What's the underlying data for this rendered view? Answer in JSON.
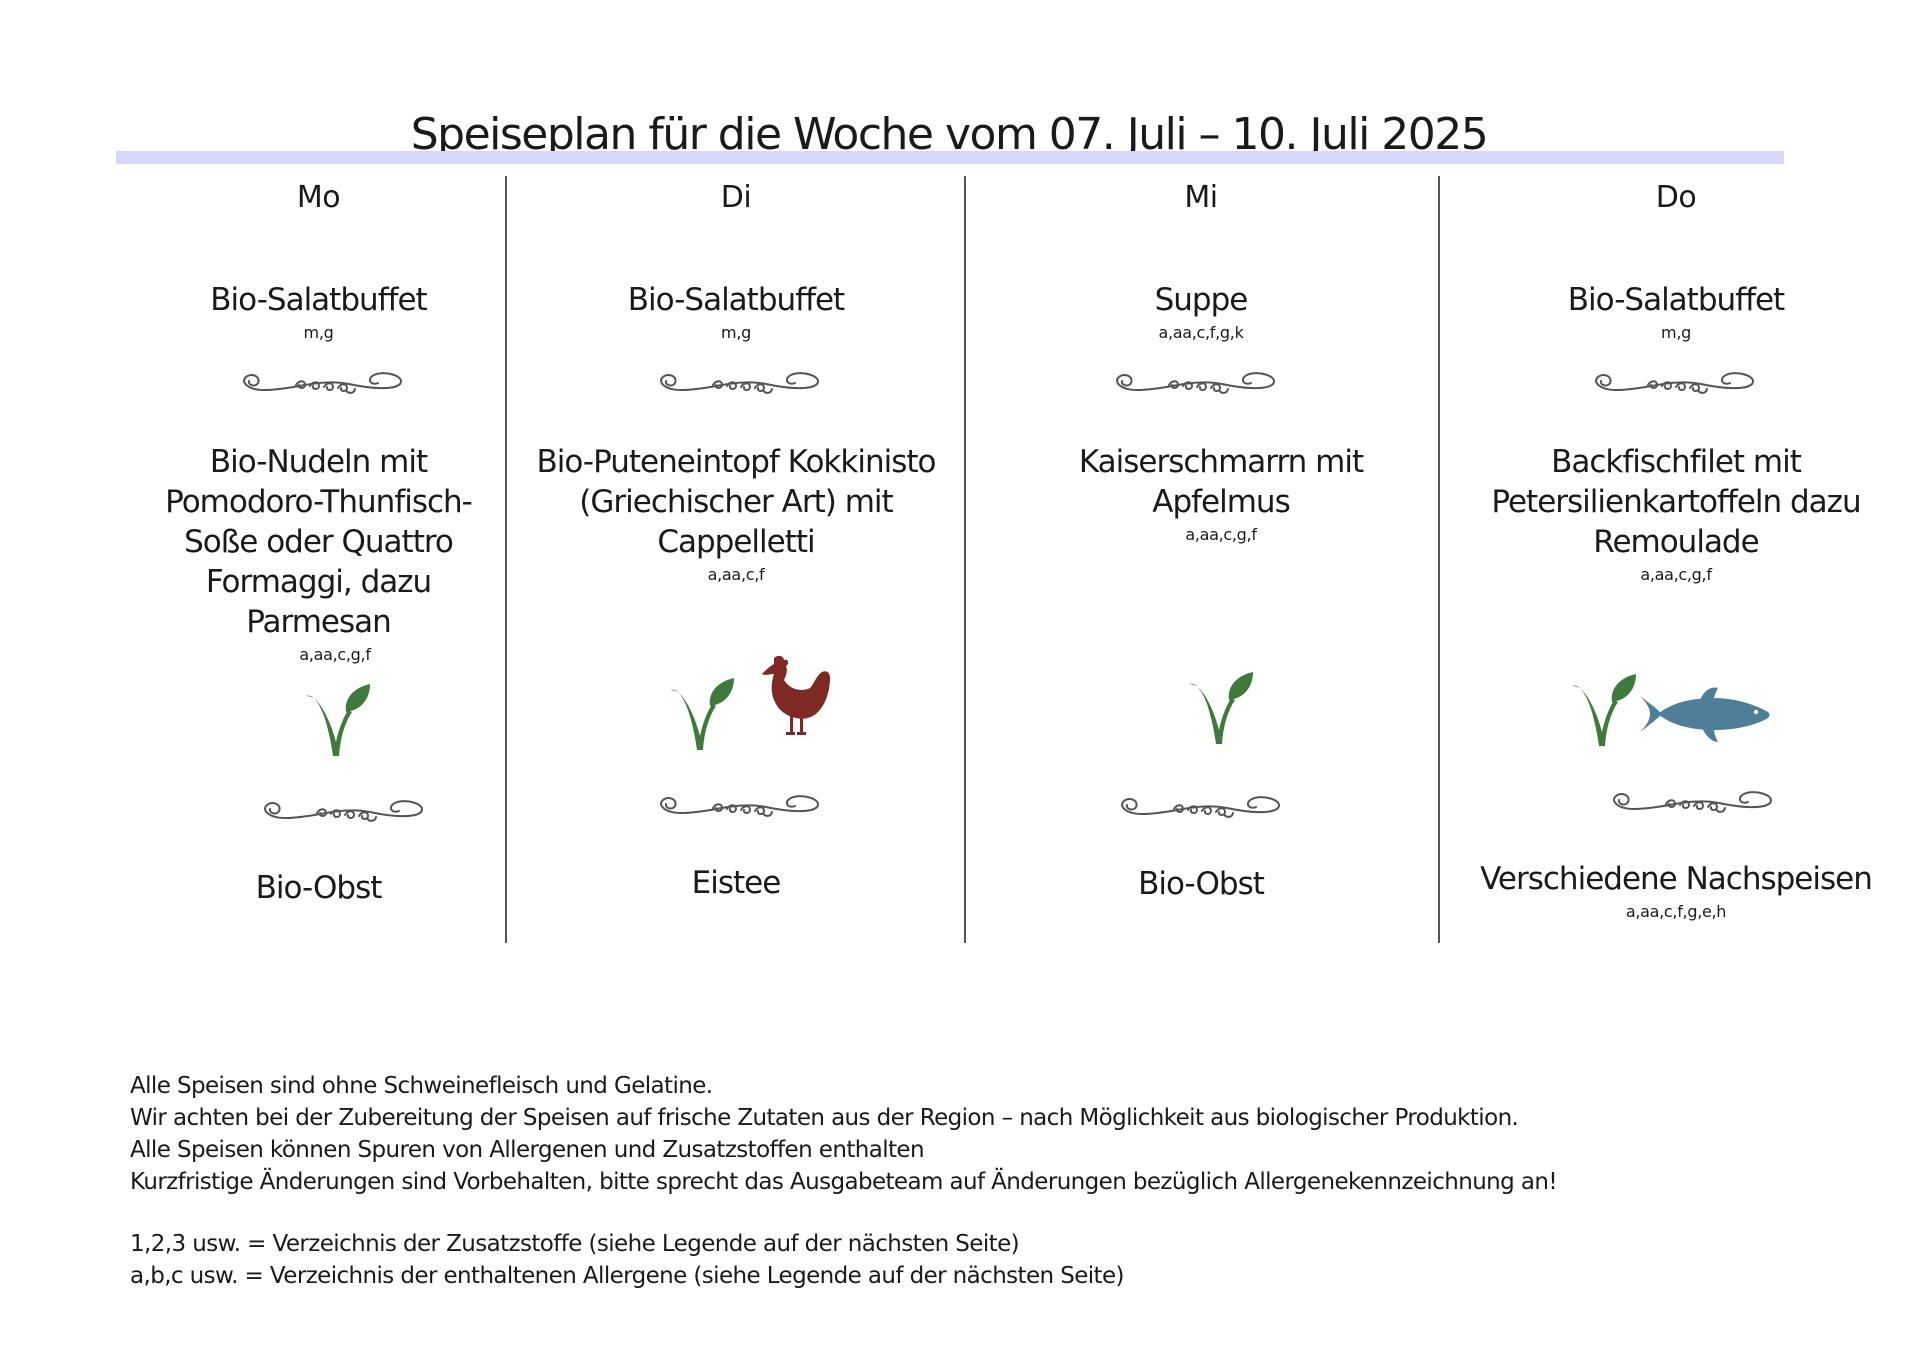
{
  "title": "Speiseplan für die Woche vom 07. Juli – 10. Juli 2025",
  "days": [
    {
      "day": "Mo",
      "starter": {
        "name": "Bio-Salatbuffet",
        "allergens": "m,g"
      },
      "main": {
        "name": "Bio-Nudeln mit Pomodoro-Thunfisch-Soße oder Quattro Formaggi, dazu Parmesan",
        "allergens": "a,aa,c,g,f",
        "icons": [
          "veggie-leaf-icon"
        ]
      },
      "dessert": {
        "name": "Bio-Obst",
        "allergens": ""
      }
    },
    {
      "day": "Di",
      "starter": {
        "name": "Bio-Salatbuffet",
        "allergens": "m,g"
      },
      "main": {
        "name": "Bio-Puteneintopf Kokkinisto (Griechischer Art) mit Cappelletti",
        "allergens": "a,aa,c,f",
        "icons": [
          "veggie-leaf-icon",
          "poultry-icon"
        ]
      },
      "dessert": {
        "name": "Eistee",
        "allergens": ""
      }
    },
    {
      "day": "Mi",
      "starter": {
        "name": "Suppe",
        "allergens": "a,aa,c,f,g,k"
      },
      "main": {
        "name": "Kaiserschmarrn mit Apfelmus",
        "allergens": "a,aa,c,g,f",
        "icons": [
          "veggie-leaf-icon"
        ]
      },
      "dessert": {
        "name": "Bio-Obst",
        "allergens": ""
      }
    },
    {
      "day": "Do",
      "starter": {
        "name": "Bio-Salatbuffet",
        "allergens": "m,g"
      },
      "main": {
        "name": "Backfischfilet mit Petersilienkartoffeln dazu Remoulade",
        "allergens": "a,aa,c,g,f",
        "icons": [
          "veggie-leaf-icon",
          "fish-icon"
        ]
      },
      "dessert": {
        "name": "Verschiedene Nachspeisen",
        "allergens": "a,aa,c,f,g,e,h"
      }
    }
  ],
  "footer": {
    "notes": [
      "Alle Speisen sind ohne Schweinefleisch und Gelatine.",
      "Wir achten bei der Zubereitung der Speisen auf frische Zutaten aus der Region – nach Möglichkeit aus biologischer Produktion.",
      "Alle Speisen können Spuren von Allergenen und Zusatzstoffen enthalten",
      "Kurzfristige Änderungen sind Vorbehalten, bitte sprecht das Ausgabeteam auf Änderungen bezüglich Allergenekennzeichnung an!"
    ],
    "legend": [
      "1,2,3 usw. = Verzeichnis der Zusatzstoffe (siehe Legende auf der nächsten Seite)",
      "a,b,c usw. = Verzeichnis der enthaltenen Allergene (siehe Legende auf der nächsten Seite)"
    ]
  },
  "colors": {
    "title_bar": "#d8d7fb",
    "leaf": "#3f7a3c",
    "poultry": "#7d2a25",
    "fish": "#4f7f98",
    "ornament": "#555555"
  }
}
